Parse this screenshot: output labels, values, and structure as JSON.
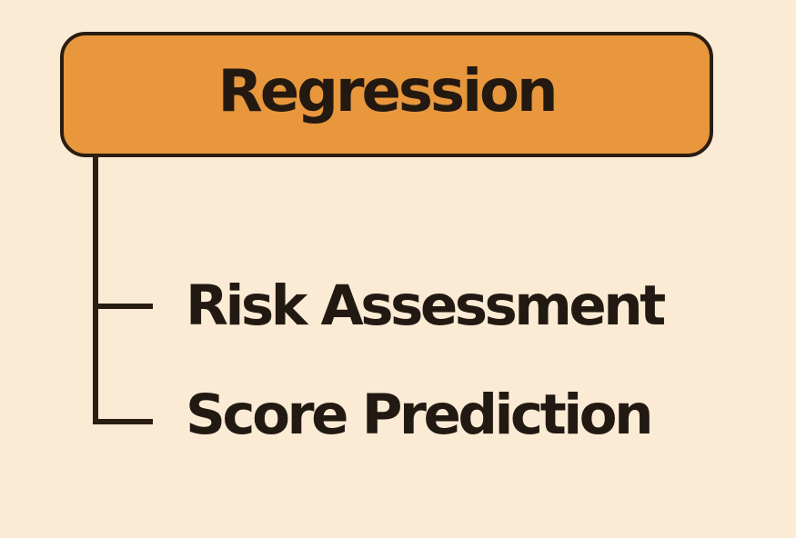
{
  "category": {
    "title": "Regression",
    "items": [
      {
        "label": "Risk Assessment"
      },
      {
        "label": "Score Prediction"
      }
    ]
  },
  "colors": {
    "background": "#fbebd5",
    "header_fill": "#e8973d",
    "outline": "#2a1d12",
    "text": "#221a12"
  }
}
